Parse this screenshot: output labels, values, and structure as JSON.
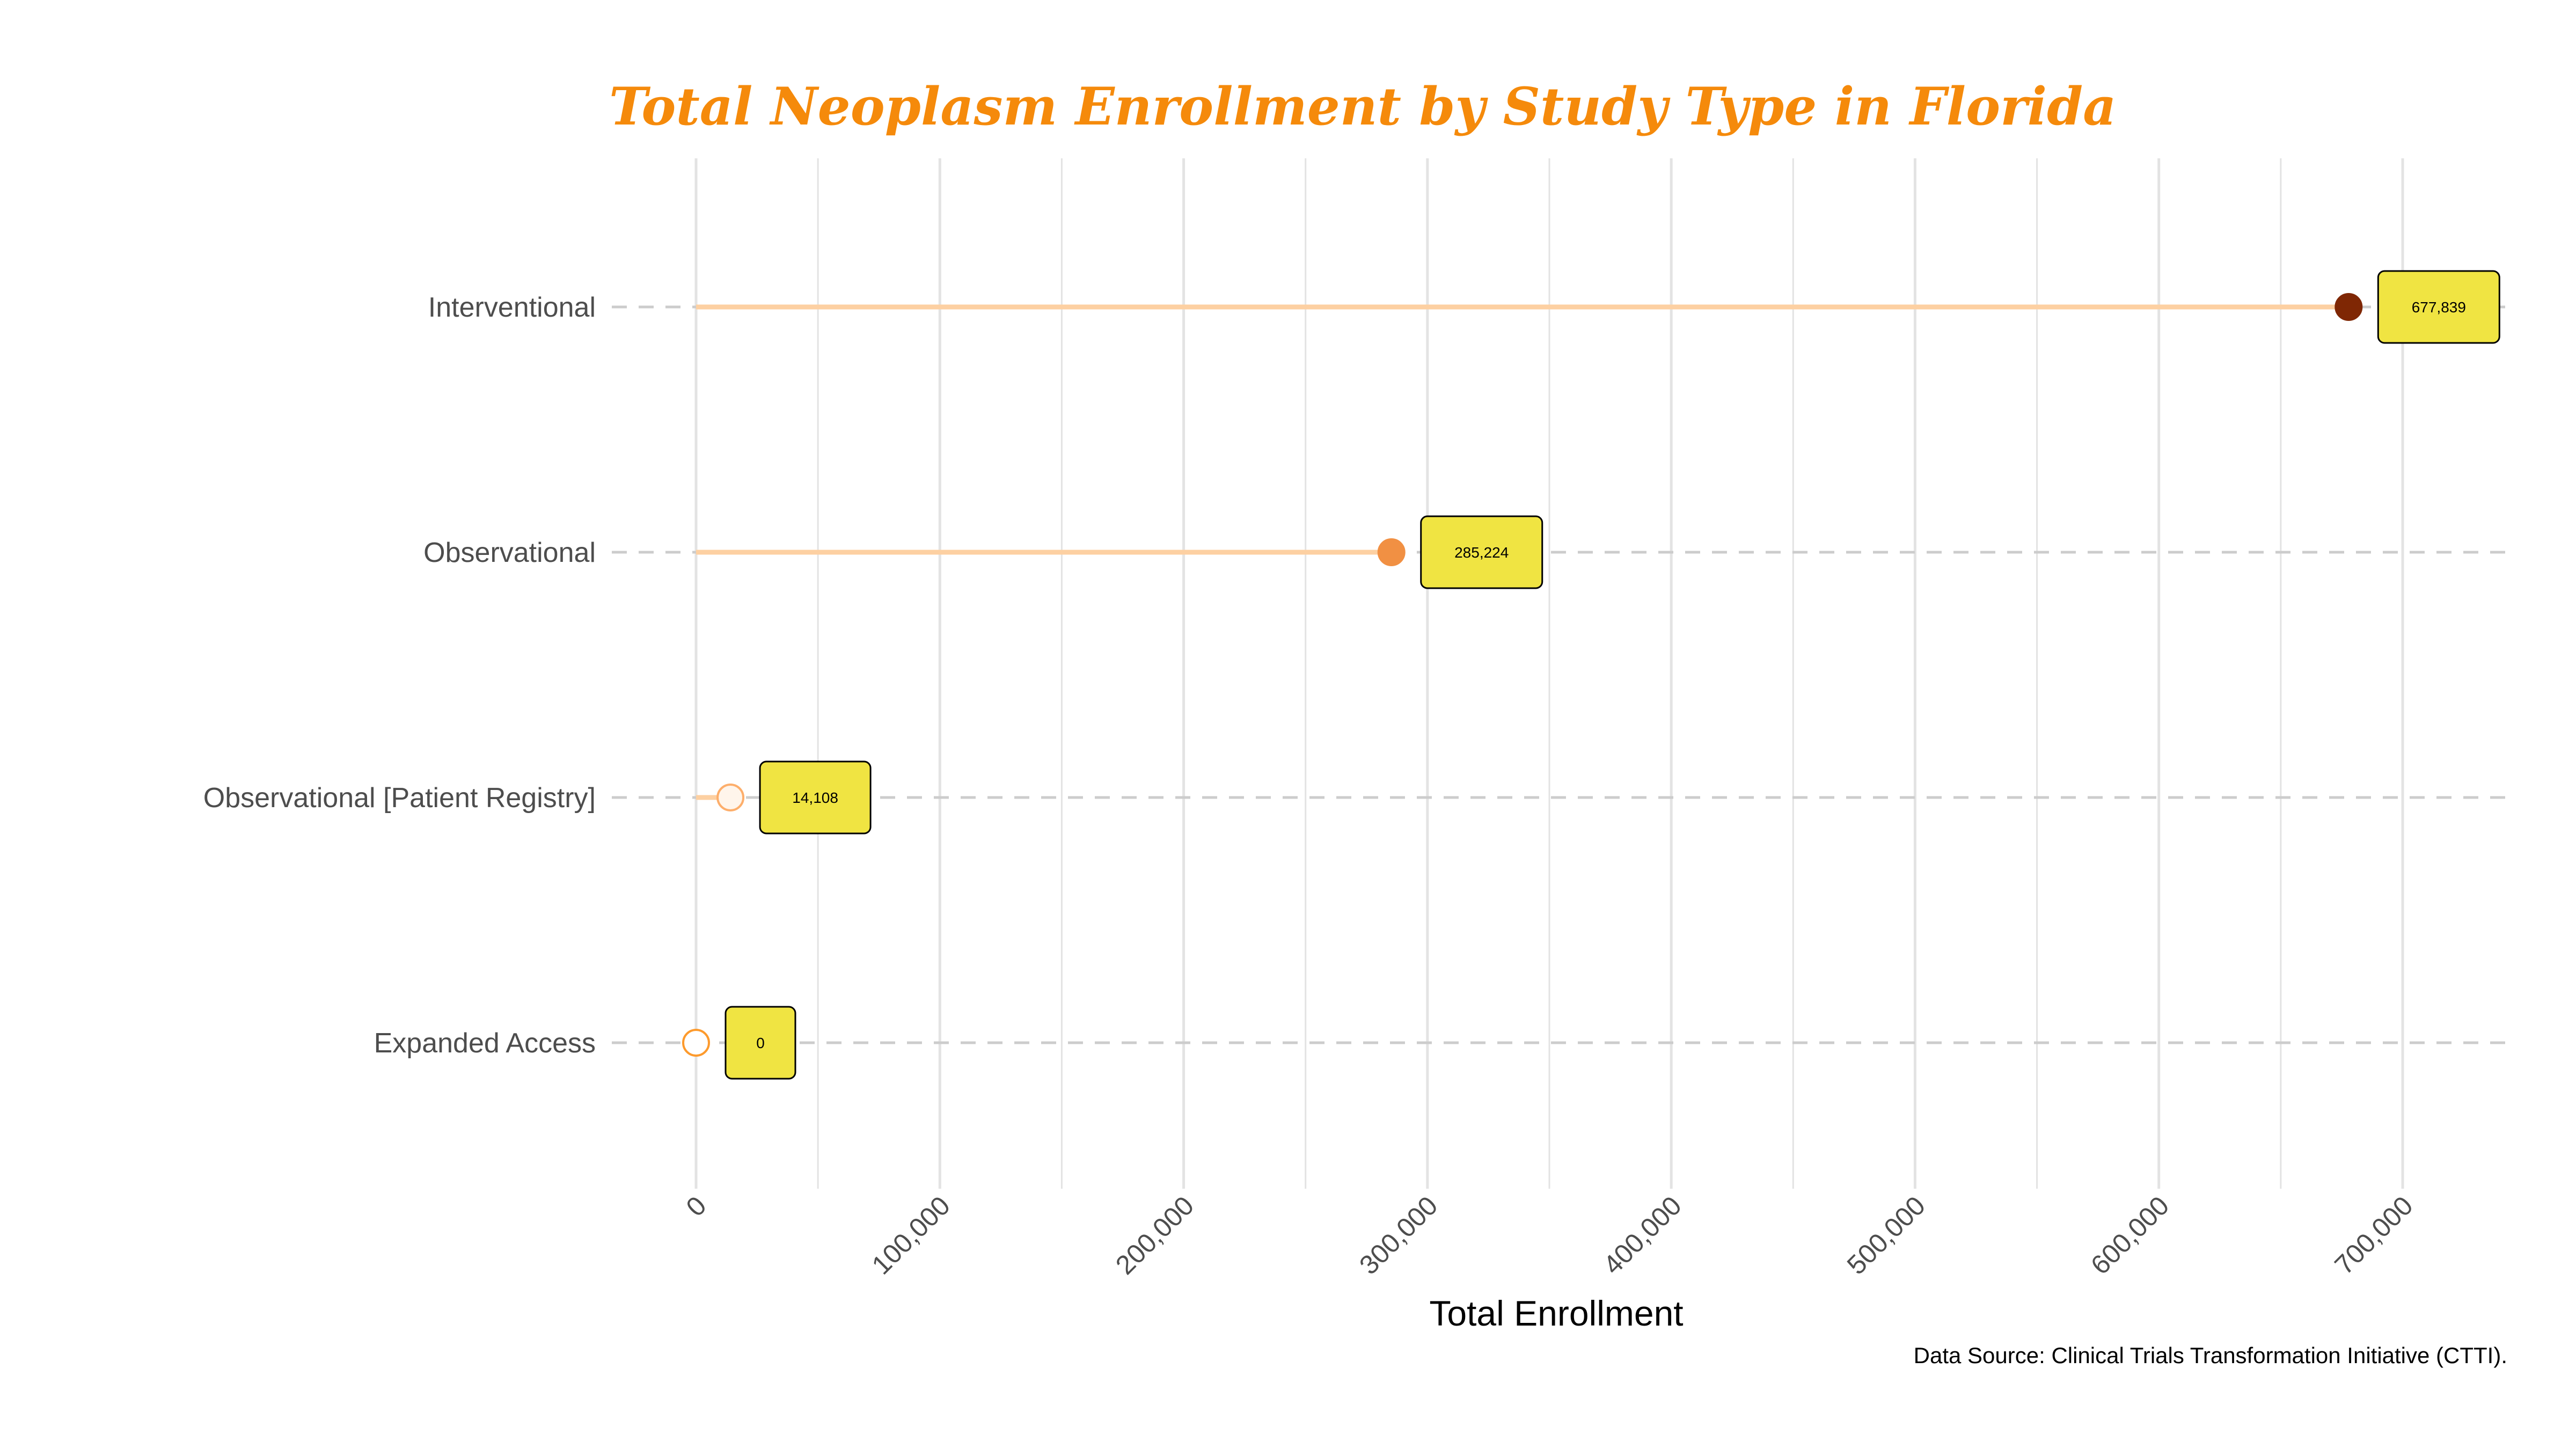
{
  "chart_data": {
    "type": "lollipop",
    "title": "Total Neoplasm Enrollment by Study Type in Florida",
    "xlabel": "Total Enrollment",
    "ylabel": "",
    "caption": "Data Source: Clinical Trials Transformation Initiative (CTTI).",
    "categories": [
      "Interventional",
      "Observational",
      "Observational [Patient Registry]",
      "Expanded Access"
    ],
    "values": [
      677839,
      285224,
      14108,
      0
    ],
    "value_labels": [
      "677,839",
      "285,224",
      "14,108",
      "0"
    ],
    "xlim": [
      -35000,
      742000
    ],
    "x_ticks": [
      0,
      100000,
      200000,
      300000,
      400000,
      500000,
      600000,
      700000
    ],
    "x_tick_labels": [
      "0",
      "100,000",
      "200,000",
      "300,000",
      "400,000",
      "500,000",
      "600,000",
      "700,000"
    ],
    "grid": true,
    "colors": {
      "title": "#f58a0b",
      "stem": "#fdd0a2",
      "label_fill": "#f0e442",
      "point_fills": [
        "#7f2704",
        "#f19043",
        "#fff5eb",
        "#ffffff"
      ],
      "point_strokes": [
        "#7f2704",
        "#f19043",
        "#fdae6b",
        "#fd9a2c"
      ],
      "grid": "#e3e3e3",
      "category_dash": "#cccccc"
    }
  }
}
